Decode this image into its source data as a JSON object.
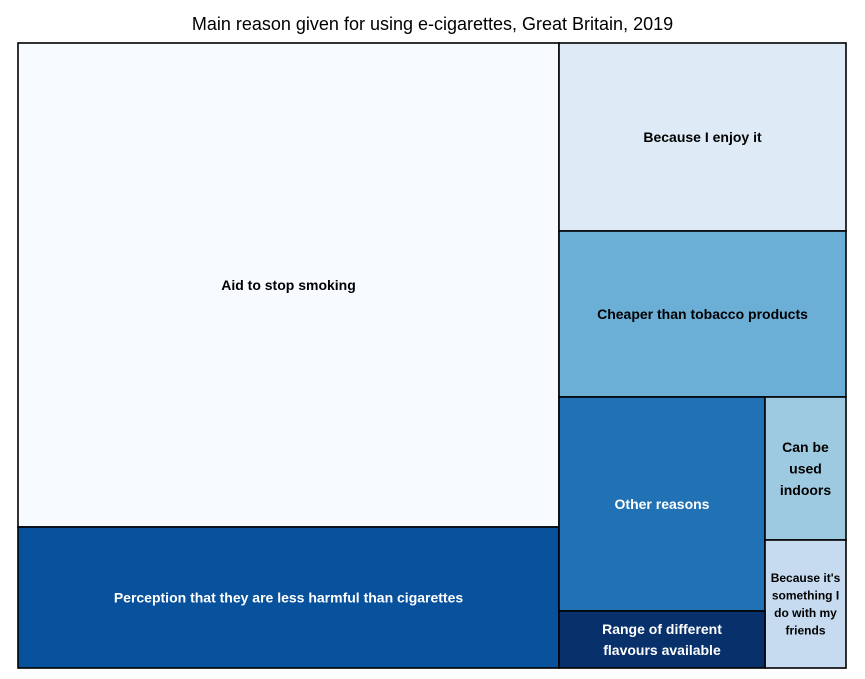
{
  "chart_data": {
    "type": "treemap",
    "title": "Main reason given for using e-cigarettes, Great Britain, 2019",
    "values_note": "",
    "categories": [
      {
        "label": "Aid to stop smoking",
        "value": 54.0,
        "color": "#f7fbff",
        "text_color": "#000000"
      },
      {
        "label": "Perception that they are less harmful than cigarettes",
        "value": 14.2,
        "color": "#08519c",
        "text_color": "#ffffff"
      },
      {
        "label": "Because I enjoy it",
        "value": 9.0,
        "color": "#deebf7",
        "text_color": "#000000"
      },
      {
        "label": "Cheaper than tobacco products",
        "value": 8.1,
        "color": "#6baed6",
        "text_color": "#000000"
      },
      {
        "label": "Other reasons",
        "value": 6.1,
        "color": "#2171b5",
        "text_color": "#ffffff"
      },
      {
        "label": "Can be used indoors",
        "value": 2.7,
        "color": "#9ecae1",
        "text_color": "#000000"
      },
      {
        "label": "Because it's something I do with my friends",
        "value": 2.5,
        "color": "#c6dbef",
        "text_color": "#000000"
      },
      {
        "label": "Range of different flavours available",
        "value": 1.6,
        "color": "#08306b",
        "text_color": "#ffffff"
      }
    ]
  }
}
